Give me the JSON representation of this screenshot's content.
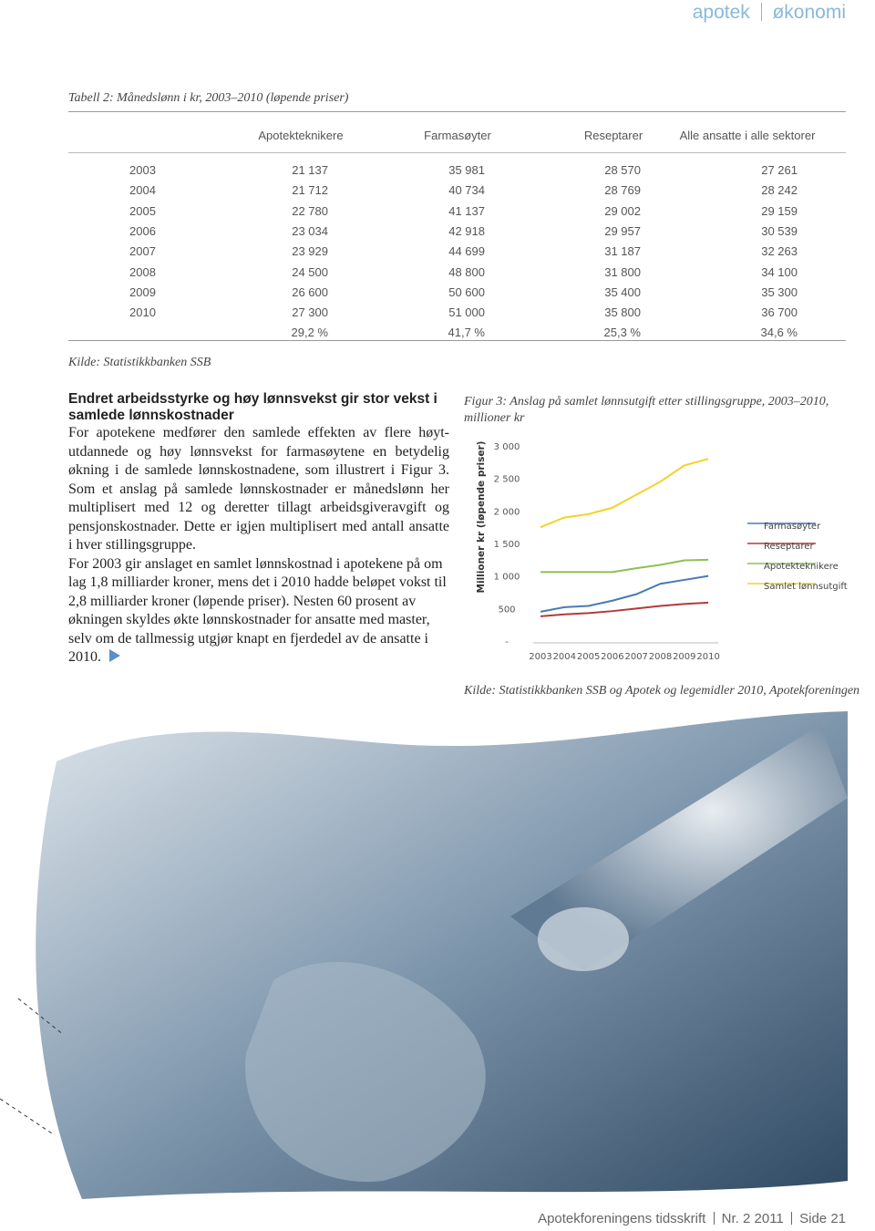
{
  "header": {
    "section": "apotek",
    "topic": "økonomi"
  },
  "table": {
    "caption": "Tabell 2: Månedslønn i kr, 2003–2010 (løpende priser)",
    "columns": [
      "Apotekteknikere",
      "Farmasøyter",
      "Reseptarer",
      "Alle ansatte i alle sektorer"
    ],
    "rows": [
      {
        "year": "2003",
        "values": [
          "21 137",
          "35 981",
          "28 570",
          "27 261"
        ]
      },
      {
        "year": "2004",
        "values": [
          "21 712",
          "40 734",
          "28 769",
          "28 242"
        ]
      },
      {
        "year": "2005",
        "values": [
          "22 780",
          "41 137",
          "29 002",
          "29 159"
        ]
      },
      {
        "year": "2006",
        "values": [
          "23 034",
          "42 918",
          "29 957",
          "30 539"
        ]
      },
      {
        "year": "2007",
        "values": [
          "23 929",
          "44 699",
          "31 187",
          "32 263"
        ]
      },
      {
        "year": "2008",
        "values": [
          "24 500",
          "48 800",
          "31 800",
          "34 100"
        ]
      },
      {
        "year": "2009",
        "values": [
          "26 600",
          "50 600",
          "35 400",
          "35 300"
        ]
      },
      {
        "year": "2010",
        "values": [
          "27 300",
          "51 000",
          "35 800",
          "36 700"
        ]
      }
    ],
    "change": [
      "29,2 %",
      "41,7 %",
      "25,3 %",
      "34,6 %"
    ],
    "source": "Kilde: Statistikkbanken SSB"
  },
  "article": {
    "heading": "Endret arbeidsstyrke og høy lønnsvekst gir stor vekst i samlede lønnskostnader",
    "paragraphs": [
      "For apotekene medfører den samlede effekten av flere høyt­utdannede og høy lønnsvekst for farmasøytene en betydelig økning i de samlede lønnskostnadene, som illustrert i Figur 3. Som et anslag på samlede lønnskostnader er månedslønn her multiplisert med 12 og deretter tillagt arbeidsgiveravgift og pensjonskostnader. Dette er igjen multiplisert med antall ansatte i hver stillingsgruppe.",
      "For 2003 gir anslaget en samlet lønnskostnad i apotekene på om lag 1,8 milliarder kroner, mens det i 2010 hadde be­løpet vokst til 2,8 milliarder kroner (løpende priser). Nesten 60 prosent av økningen skyldes økte lønnskostnader for ansatte med master, selv om de tallmessig utgjør knapt en fjerdedel av de ansatte i 2010."
    ]
  },
  "chart_data": {
    "type": "line",
    "title": "Figur 3: Anslag på samlet lønnsutgift etter stillingsgruppe, 2003–2010, millioner kr",
    "y_label": "Millioner kr (løpende priser)",
    "source": "Kilde: Statistikkbanken SSB og Apotek og legemidler 2010, Apotekforeningen",
    "categories": [
      "2003",
      "2004",
      "2005",
      "2006",
      "2007",
      "2008",
      "2009",
      "2010"
    ],
    "ylim": [
      0,
      3000
    ],
    "yticks": [
      {
        "value": 0,
        "label": "-"
      },
      500,
      {
        "value": 1000,
        "label": "1 000"
      },
      {
        "value": 1500,
        "label": "1 500"
      },
      {
        "value": 2000,
        "label": "2 000"
      },
      {
        "value": 2500,
        "label": "2 500"
      },
      {
        "value": 3000,
        "label": "3 000"
      }
    ],
    "legend": "right",
    "series": [
      {
        "name": "Farmasøyter",
        "color": "#4a7ab5",
        "values": [
          450,
          520,
          540,
          620,
          720,
          880,
          940,
          1000
        ]
      },
      {
        "name": "Reseptarer",
        "color": "#b23b3b",
        "values": [
          380,
          410,
          430,
          460,
          500,
          540,
          570,
          590
        ]
      },
      {
        "name": "Apotekteknikere",
        "color": "#8cc152",
        "values": [
          1060,
          1060,
          1060,
          1060,
          1120,
          1170,
          1240,
          1250
        ]
      },
      {
        "name": "Samlet lønnsutgift",
        "color": "#f4d22a",
        "values": [
          1750,
          1900,
          1950,
          2050,
          2250,
          2450,
          2700,
          2800
        ]
      }
    ]
  },
  "footer": {
    "publication": "Apotekforeningens tidsskrift",
    "issue": "Nr. 2 2011",
    "page": "Side 21"
  }
}
